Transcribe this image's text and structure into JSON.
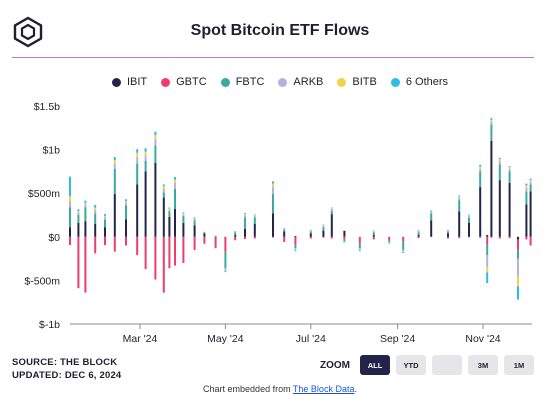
{
  "header": {
    "title": "Spot Bitcoin ETF Flows"
  },
  "legend": [
    {
      "label": "IBIT",
      "color": "#24234a"
    },
    {
      "label": "GBTC",
      "color": "#ee3d6b"
    },
    {
      "label": "FBTC",
      "color": "#3aa9a0"
    },
    {
      "label": "ARKB",
      "color": "#b5b0e0"
    },
    {
      "label": "BITB",
      "color": "#f2d24a"
    },
    {
      "label": "6 Others",
      "color": "#2bbde3"
    }
  ],
  "footer": {
    "source": "SOURCE: THE BLOCK",
    "updated": "UPDATED: DEC 6, 2024",
    "embed_prefix": "Chart embedded from ",
    "embed_link": "The Block Data",
    "embed_suffix": "."
  },
  "zoom": {
    "label": "ZOOM",
    "buttons": [
      {
        "label": "ALL",
        "active": true
      },
      {
        "label": "YTD",
        "active": false
      },
      {
        "label": "",
        "active": false
      },
      {
        "label": "3M",
        "active": false
      },
      {
        "label": "1M",
        "active": false
      }
    ]
  },
  "chart_data": {
    "type": "bar",
    "stacked": true,
    "title": "Spot Bitcoin ETF Flows",
    "xlabel": "",
    "ylabel": "",
    "ylim": [
      -1000000000,
      1500000000
    ],
    "y_ticks": [
      {
        "value": 1500000000,
        "label": "$1.5b"
      },
      {
        "value": 1000000000,
        "label": "$1b"
      },
      {
        "value": 500000000,
        "label": "$500m"
      },
      {
        "value": 0,
        "label": "$0"
      },
      {
        "value": -500000000,
        "label": "$-500m"
      },
      {
        "value": -1000000000,
        "label": "$-1b"
      }
    ],
    "x_ticks": [
      {
        "date": "2024-03-01",
        "label": "Mar '24"
      },
      {
        "date": "2024-05-01",
        "label": "May '24"
      },
      {
        "date": "2024-07-01",
        "label": "Jul '24"
      },
      {
        "date": "2024-09-01",
        "label": "Sep '24"
      },
      {
        "date": "2024-11-01",
        "label": "Nov '24"
      }
    ],
    "x_range": [
      "2024-01-11",
      "2024-12-06"
    ],
    "legend_position": "top-center",
    "grid": false,
    "series_names": [
      "IBIT",
      "GBTC",
      "FBTC",
      "ARKB",
      "BITB",
      "6 Others"
    ],
    "data_points": [
      {
        "date": "2024-01-11",
        "IBIT": 110,
        "GBTC": -95,
        "FBTC": 230,
        "ARKB": 65,
        "BITB": 60,
        "6 Others": 225
      },
      {
        "date": "2024-01-17",
        "IBIT": 160,
        "GBTC": -590,
        "FBTC": 90,
        "ARKB": 30,
        "BITB": 15,
        "6 Others": 20
      },
      {
        "date": "2024-01-22",
        "IBIT": 180,
        "GBTC": -640,
        "FBTC": 160,
        "ARKB": 35,
        "BITB": 15,
        "6 Others": 25
      },
      {
        "date": "2024-01-29",
        "IBIT": 150,
        "GBTC": -190,
        "FBTC": 120,
        "ARKB": 40,
        "BITB": 25,
        "6 Others": 30
      },
      {
        "date": "2024-02-05",
        "IBIT": 110,
        "GBTC": -95,
        "FBTC": 85,
        "ARKB": 30,
        "BITB": 15,
        "6 Others": 20
      },
      {
        "date": "2024-02-12",
        "IBIT": 490,
        "GBTC": -170,
        "FBTC": 290,
        "ARKB": 60,
        "BITB": 40,
        "6 Others": 35
      },
      {
        "date": "2024-02-20",
        "IBIT": 200,
        "GBTC": -100,
        "FBTC": 160,
        "ARKB": 30,
        "BITB": 20,
        "6 Others": 20
      },
      {
        "date": "2024-02-28",
        "IBIT": 600,
        "GBTC": -210,
        "FBTC": 240,
        "ARKB": 70,
        "BITB": 55,
        "6 Others": 40
      },
      {
        "date": "2024-03-05",
        "IBIT": 750,
        "GBTC": -370,
        "FBTC": 120,
        "ARKB": 60,
        "BITB": 45,
        "6 Others": 40
      },
      {
        "date": "2024-03-12",
        "IBIT": 850,
        "GBTC": -490,
        "FBTC": 200,
        "ARKB": 70,
        "BITB": 45,
        "6 Others": 40
      },
      {
        "date": "2024-03-18",
        "IBIT": 450,
        "GBTC": -640,
        "FBTC": 60,
        "ARKB": 40,
        "BITB": 30,
        "6 Others": 20
      },
      {
        "date": "2024-03-22",
        "IBIT": 230,
        "GBTC": -360,
        "FBTC": 60,
        "ARKB": 20,
        "BITB": 15,
        "6 Others": 10
      },
      {
        "date": "2024-03-26",
        "IBIT": 320,
        "GBTC": -330,
        "FBTC": 230,
        "ARKB": 70,
        "BITB": 35,
        "6 Others": 30
      },
      {
        "date": "2024-04-01",
        "IBIT": 160,
        "GBTC": -300,
        "FBTC": 80,
        "ARKB": 20,
        "BITB": 10,
        "6 Others": 10
      },
      {
        "date": "2024-04-09",
        "IBIT": 130,
        "GBTC": -150,
        "FBTC": 60,
        "ARKB": 20,
        "BITB": 10,
        "6 Others": 5
      },
      {
        "date": "2024-04-16",
        "IBIT": 40,
        "GBTC": -80,
        "FBTC": 10,
        "ARKB": 5,
        "BITB": 5,
        "6 Others": 0
      },
      {
        "date": "2024-04-24",
        "IBIT": 0,
        "GBTC": -130,
        "FBTC": 10,
        "ARKB": 5,
        "BITB": 0,
        "6 Others": 0
      },
      {
        "date": "2024-05-01",
        "IBIT": 0,
        "GBTC": -170,
        "FBTC": -190,
        "ARKB": -30,
        "BITB": -5,
        "6 Others": -10
      },
      {
        "date": "2024-05-08",
        "IBIT": 20,
        "GBTC": -40,
        "FBTC": 30,
        "ARKB": 5,
        "BITB": 5,
        "6 Others": 5
      },
      {
        "date": "2024-05-15",
        "IBIT": 90,
        "GBTC": -25,
        "FBTC": 130,
        "ARKB": 25,
        "BITB": 15,
        "6 Others": 10
      },
      {
        "date": "2024-05-22",
        "IBIT": 150,
        "GBTC": -20,
        "FBTC": 70,
        "ARKB": 20,
        "BITB": 10,
        "6 Others": 5
      },
      {
        "date": "2024-06-04",
        "IBIT": 270,
        "GBTC": -10,
        "FBTC": 220,
        "ARKB": 80,
        "BITB": 40,
        "6 Others": 25
      },
      {
        "date": "2024-06-12",
        "IBIT": 60,
        "GBTC": -60,
        "FBTC": 20,
        "ARKB": 10,
        "BITB": 5,
        "6 Others": 5
      },
      {
        "date": "2024-06-20",
        "IBIT": 10,
        "GBTC": -90,
        "FBTC": -40,
        "ARKB": -20,
        "BITB": -5,
        "6 Others": -10
      },
      {
        "date": "2024-07-01",
        "IBIT": 40,
        "GBTC": -20,
        "FBTC": 20,
        "ARKB": 10,
        "BITB": 5,
        "6 Others": 5
      },
      {
        "date": "2024-07-10",
        "IBIT": 70,
        "GBTC": -10,
        "FBTC": 40,
        "ARKB": 15,
        "BITB": 10,
        "6 Others": 5
      },
      {
        "date": "2024-07-16",
        "IBIT": 260,
        "GBTC": -20,
        "FBTC": 40,
        "ARKB": 20,
        "BITB": 10,
        "6 Others": 5
      },
      {
        "date": "2024-07-25",
        "IBIT": 70,
        "GBTC": -30,
        "FBTC": -20,
        "ARKB": -5,
        "BITB": 5,
        "6 Others": -10
      },
      {
        "date": "2024-08-05",
        "IBIT": 0,
        "GBTC": -70,
        "FBTC": -60,
        "ARKB": -20,
        "BITB": -5,
        "6 Others": -10
      },
      {
        "date": "2024-08-15",
        "IBIT": 20,
        "GBTC": -30,
        "FBTC": 30,
        "ARKB": 10,
        "BITB": 5,
        "6 Others": 5
      },
      {
        "date": "2024-08-26",
        "IBIT": 0,
        "GBTC": -40,
        "FBTC": -20,
        "ARKB": -10,
        "BITB": -5,
        "6 Others": -5
      },
      {
        "date": "2024-09-05",
        "IBIT": 0,
        "GBTC": -50,
        "FBTC": -100,
        "ARKB": -20,
        "BITB": -5,
        "6 Others": -10
      },
      {
        "date": "2024-09-16",
        "IBIT": 20,
        "GBTC": -15,
        "FBTC": 30,
        "ARKB": 20,
        "BITB": 5,
        "6 Others": 5
      },
      {
        "date": "2024-09-25",
        "IBIT": 190,
        "GBTC": 0,
        "FBTC": 80,
        "ARKB": 20,
        "BITB": 10,
        "6 Others": 5
      },
      {
        "date": "2024-10-07",
        "IBIT": 40,
        "GBTC": -20,
        "FBTC": 20,
        "ARKB": 10,
        "BITB": 5,
        "6 Others": 5
      },
      {
        "date": "2024-10-15",
        "IBIT": 290,
        "GBTC": -15,
        "FBTC": 130,
        "ARKB": 30,
        "BITB": 15,
        "6 Others": 10
      },
      {
        "date": "2024-10-22",
        "IBIT": 160,
        "GBTC": -5,
        "FBTC": 60,
        "ARKB": 20,
        "BITB": 10,
        "6 Others": 5
      },
      {
        "date": "2024-10-30",
        "IBIT": 570,
        "GBTC": -10,
        "FBTC": 180,
        "ARKB": 30,
        "BITB": 25,
        "6 Others": 20
      },
      {
        "date": "2024-11-04",
        "IBIT": 20,
        "GBTC": -90,
        "FBTC": -120,
        "ARKB": -140,
        "BITB": -60,
        "6 Others": -120
      },
      {
        "date": "2024-11-07",
        "IBIT": 1100,
        "GBTC": -10,
        "FBTC": 190,
        "ARKB": 30,
        "BITB": 20,
        "6 Others": 20
      },
      {
        "date": "2024-11-13",
        "IBIT": 650,
        "GBTC": -20,
        "FBTC": 180,
        "ARKB": 40,
        "BITB": 20,
        "6 Others": 15
      },
      {
        "date": "2024-11-20",
        "IBIT": 620,
        "GBTC": -15,
        "FBTC": 130,
        "ARKB": 30,
        "BITB": 20,
        "6 Others": 10
      },
      {
        "date": "2024-11-26",
        "IBIT": -30,
        "GBTC": -120,
        "FBTC": -100,
        "ARKB": -200,
        "BITB": -120,
        "6 Others": -150
      },
      {
        "date": "2024-12-02",
        "IBIT": 370,
        "GBTC": -30,
        "FBTC": 150,
        "ARKB": 40,
        "BITB": 30,
        "6 Others": 20
      },
      {
        "date": "2024-12-05",
        "IBIT": 520,
        "GBTC": -100,
        "FBTC": 80,
        "ARKB": 30,
        "BITB": 20,
        "6 Others": 15
      }
    ],
    "data_units": "millions USD"
  }
}
